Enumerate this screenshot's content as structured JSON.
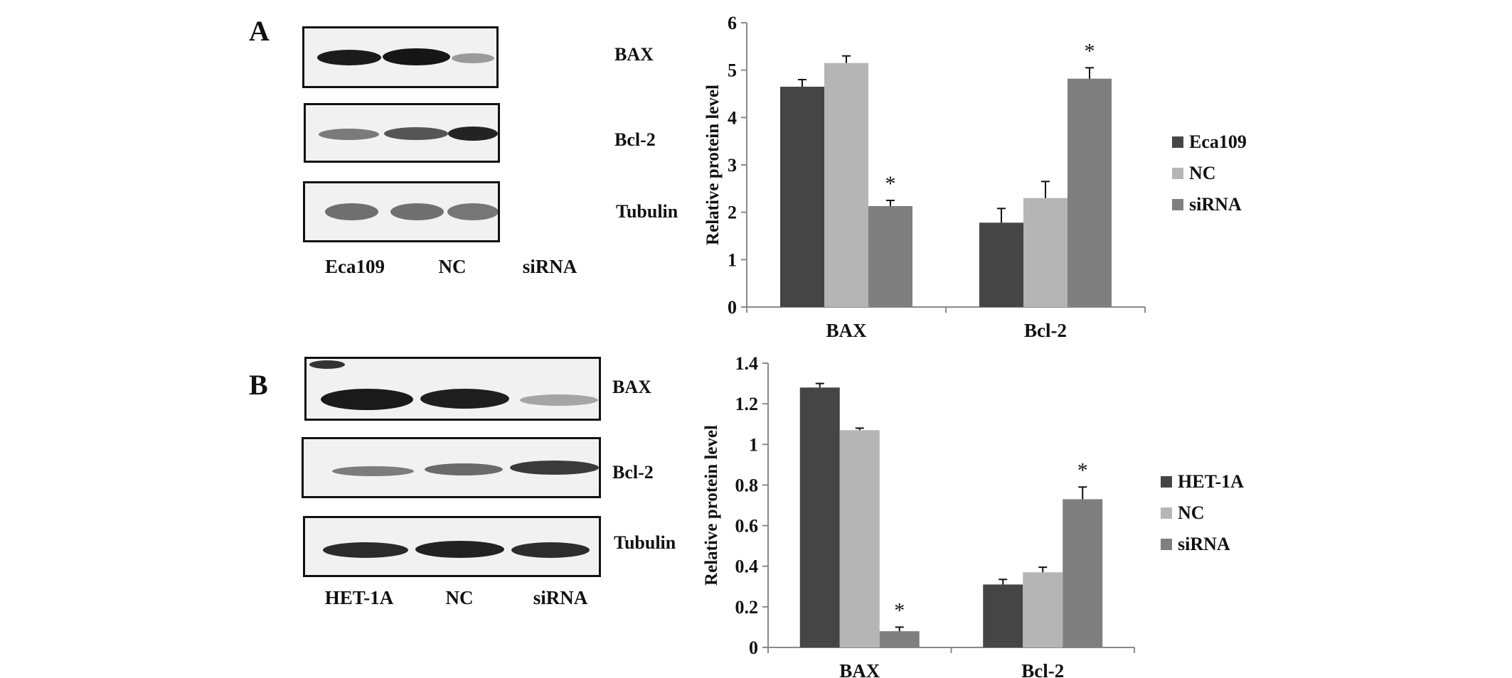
{
  "panels": [
    {
      "letter": "A",
      "blot_rows": [
        "BAX",
        "Bcl-2",
        "Tubulin"
      ],
      "lanes": [
        "Eca109",
        "NC",
        "siRNA"
      ]
    },
    {
      "letter": "B",
      "blot_rows": [
        "BAX",
        "Bcl-2",
        "Tubulin"
      ],
      "lanes": [
        "HET-1A",
        "NC",
        "siRNA"
      ]
    }
  ],
  "colors": {
    "series1": "#454545",
    "series2": "#b5b5b5",
    "series3": "#7f7f7f",
    "axis": "#8a8a8a",
    "text": "#111111"
  },
  "chart_data": [
    {
      "type": "bar",
      "ylabel": "Relative protein level",
      "ylim": [
        0,
        6
      ],
      "yticks": [
        "0",
        "1",
        "2",
        "3",
        "4",
        "5",
        "6"
      ],
      "categories": [
        "BAX",
        "Bcl-2"
      ],
      "legend_position": "right",
      "series": [
        {
          "name": "Eca109",
          "values": [
            4.65,
            1.78
          ],
          "errors": [
            0.15,
            0.3
          ],
          "significance": [
            "",
            ""
          ]
        },
        {
          "name": "NC",
          "values": [
            5.15,
            2.3
          ],
          "errors": [
            0.15,
            0.35
          ],
          "significance": [
            "",
            ""
          ]
        },
        {
          "name": "siRNA",
          "values": [
            2.13,
            4.82
          ],
          "errors": [
            0.12,
            0.23
          ],
          "significance": [
            "*",
            "*"
          ]
        }
      ]
    },
    {
      "type": "bar",
      "ylabel": "Relative protein level",
      "ylim": [
        0,
        1.4
      ],
      "yticks": [
        "0",
        "0.2",
        "0.4",
        "0.6",
        "0.8",
        "1",
        "1.2",
        "1.4"
      ],
      "categories": [
        "BAX",
        "Bcl-2"
      ],
      "legend_position": "right",
      "series": [
        {
          "name": "HET-1A",
          "values": [
            1.28,
            0.31
          ],
          "errors": [
            0.02,
            0.025
          ],
          "significance": [
            "",
            ""
          ]
        },
        {
          "name": "NC",
          "values": [
            1.07,
            0.37
          ],
          "errors": [
            0.01,
            0.025
          ],
          "significance": [
            "",
            ""
          ]
        },
        {
          "name": "siRNA",
          "values": [
            0.08,
            0.73
          ],
          "errors": [
            0.02,
            0.06
          ],
          "significance": [
            "*",
            "*"
          ]
        }
      ]
    }
  ]
}
